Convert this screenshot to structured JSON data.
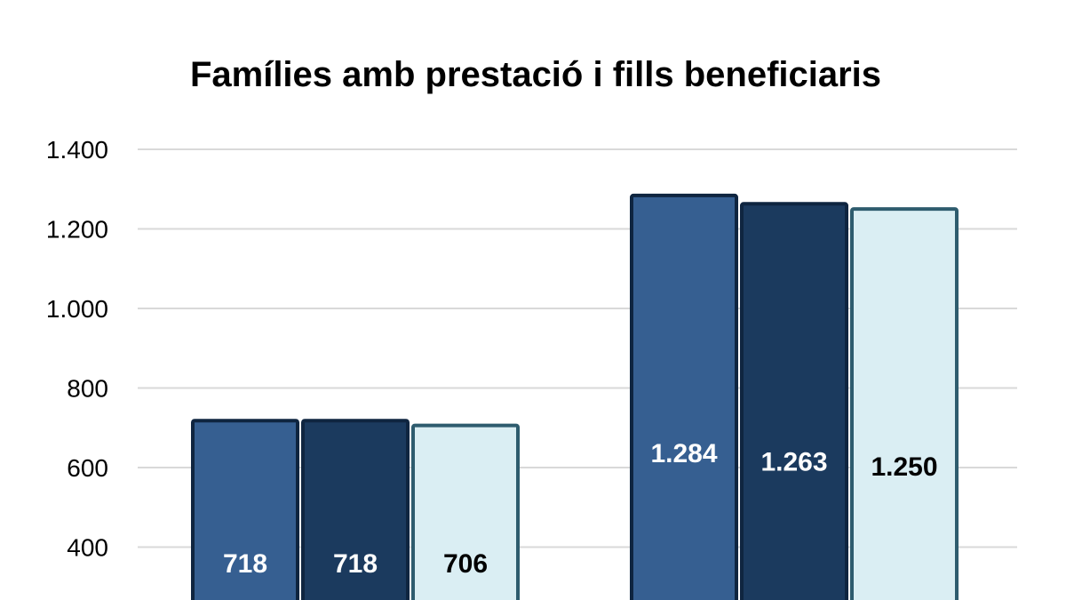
{
  "chart_data": {
    "type": "bar",
    "title": "Famílies amb prestació i fills beneficiaris",
    "categories": [
      "",
      ""
    ],
    "series": [
      {
        "values": [
          718,
          1284
        ],
        "color": "#365F91",
        "label_color": "#FFFFFF"
      },
      {
        "values": [
          718,
          1263
        ],
        "color": "#1B3A5E",
        "label_color": "#FFFFFF"
      },
      {
        "values": [
          706,
          1250
        ],
        "color": "#DAEEF3",
        "label_color": "#000000"
      }
    ],
    "data_labels": [
      [
        "718",
        "1.284"
      ],
      [
        "718",
        "1.263"
      ],
      [
        "706",
        "1.250"
      ]
    ],
    "y_ticks": [
      {
        "value": 400,
        "label": "400"
      },
      {
        "value": 600,
        "label": "600"
      },
      {
        "value": 800,
        "label": "800"
      },
      {
        "value": 1000,
        "label": "1.000"
      },
      {
        "value": 1200,
        "label": "1.200"
      },
      {
        "value": 1400,
        "label": "1.400"
      }
    ],
    "ylim": [
      0,
      1400
    ],
    "grid": true,
    "colors": {
      "border_dark": "#0F2540",
      "border_light": "#2E5C6E",
      "grid": "#D9D9D9"
    }
  }
}
